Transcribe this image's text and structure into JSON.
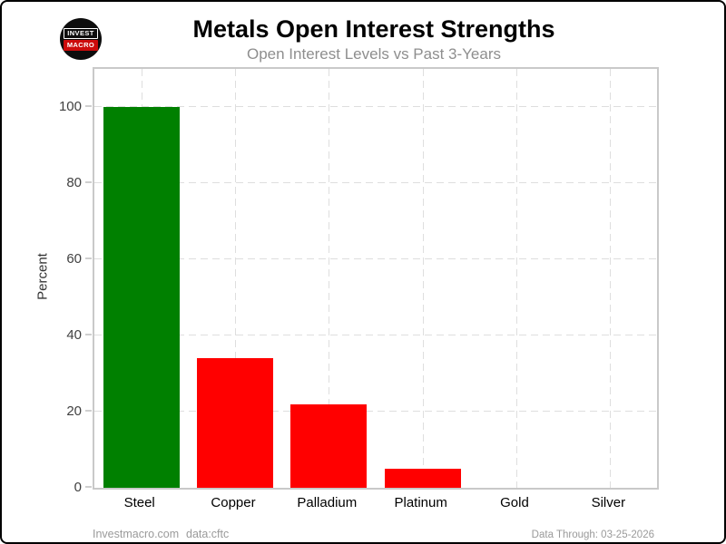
{
  "header": {
    "logo": {
      "top": "INVEST",
      "bottom": "MACRO"
    }
  },
  "chart_data": {
    "type": "bar",
    "title": "Metals Open Interest Strengths",
    "subtitle": "Open Interest Levels vs Past 3-Years",
    "categories": [
      "Steel",
      "Copper",
      "Palladium",
      "Platinum",
      "Gold",
      "Silver"
    ],
    "values": [
      100,
      34,
      22,
      5,
      0,
      0
    ],
    "bar_colors": [
      "#008000",
      "#ff0000",
      "#ff0000",
      "#ff0000",
      "#ff0000",
      "#ff0000"
    ],
    "xlabel": "",
    "ylabel": "Percent",
    "ylim": [
      0,
      110
    ],
    "yticks": [
      0,
      20,
      40,
      60,
      80,
      100
    ],
    "grid": "dashed-horizontal-and-vertical",
    "legend": "none",
    "positive_color": "#008000",
    "negative_color": "#ff0000"
  },
  "footer": {
    "site": "Investmacro.com",
    "source": "data:cftc",
    "data_through": "Data Through: 03-25-2026"
  }
}
